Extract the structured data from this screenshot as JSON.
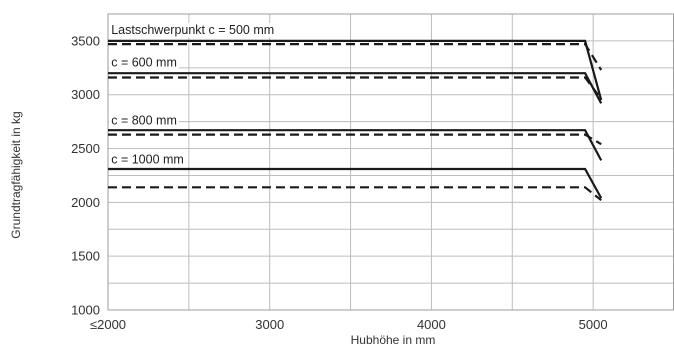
{
  "chart_data": {
    "type": "line",
    "title": "",
    "xlabel": "Hubhöhe in mm",
    "ylabel": "Grundtragfähigkeit in kg",
    "x_ticks": [
      "≤2000",
      "3000",
      "4000",
      "5000"
    ],
    "y_ticks": [
      "1000",
      "1500",
      "2000",
      "2500",
      "3000",
      "3500"
    ],
    "xlim": [
      2000,
      5500
    ],
    "ylim": [
      1000,
      3750
    ],
    "grid": true,
    "series": [
      {
        "name": "Lastschwerpunkt c = 500 mm",
        "style": "solid",
        "x": [
          2000,
          4950,
          5050
        ],
        "y": [
          3500,
          3500,
          2950
        ]
      },
      {
        "name": "Lastschwerpunkt c = 500 mm",
        "style": "dashed",
        "x": [
          2000,
          4950,
          5050
        ],
        "y": [
          3470,
          3470,
          3230
        ]
      },
      {
        "name": "c = 600 mm",
        "style": "solid",
        "x": [
          2000,
          4950,
          5050
        ],
        "y": [
          3200,
          3200,
          2920
        ]
      },
      {
        "name": "c = 600 mm",
        "style": "dashed",
        "x": [
          2000,
          4950,
          5050
        ],
        "y": [
          3160,
          3160,
          2960
        ]
      },
      {
        "name": "c = 800 mm",
        "style": "solid",
        "x": [
          2000,
          4950,
          5050
        ],
        "y": [
          2670,
          2670,
          2390
        ]
      },
      {
        "name": "c = 800 mm",
        "style": "dashed",
        "x": [
          2000,
          4950,
          5050
        ],
        "y": [
          2630,
          2630,
          2540
        ]
      },
      {
        "name": "c = 1000 mm",
        "style": "solid",
        "x": [
          2000,
          4950,
          5050
        ],
        "y": [
          2310,
          2310,
          2040
        ]
      },
      {
        "name": "c = 1000 mm",
        "style": "dashed",
        "x": [
          2000,
          4950,
          5050
        ],
        "y": [
          2140,
          2140,
          2020
        ]
      }
    ],
    "curve_labels": [
      {
        "text": "Lastschwerpunkt c = 500 mm",
        "x": 2020,
        "y": 3600
      },
      {
        "text": "c = 600 mm",
        "x": 2020,
        "y": 3300
      },
      {
        "text": "c = 800 mm",
        "x": 2020,
        "y": 2760
      },
      {
        "text": "c = 1000 mm",
        "x": 2020,
        "y": 2400
      }
    ]
  }
}
